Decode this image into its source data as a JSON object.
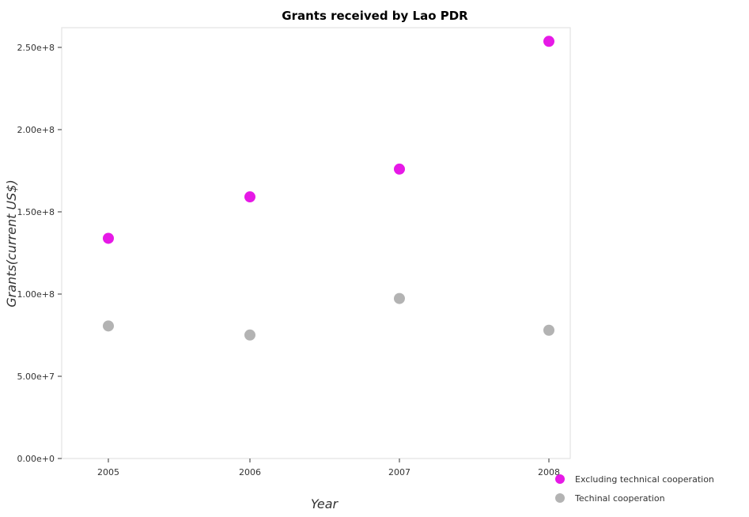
{
  "chart_data": {
    "type": "scatter",
    "title": "Grants received by Lao PDR",
    "xlabel": "Year",
    "ylabel": "Grants(current US$)",
    "categories": [
      "2005",
      "2006",
      "2007",
      "2008"
    ],
    "ylim": [
      0,
      262000000
    ],
    "yticks": [
      0,
      50000000,
      100000000,
      150000000,
      200000000,
      250000000
    ],
    "ytick_labels": [
      "0.00e+0",
      "5.00e+7",
      "1.00e+8",
      "1.50e+8",
      "2.00e+8",
      "2.50e+8"
    ],
    "grid": false,
    "legend_position": "bottom-right",
    "series": [
      {
        "name": "Excluding technical cooperation",
        "color": "#e619e6",
        "values": [
          133900000,
          159100000,
          176000000,
          253700000
        ]
      },
      {
        "name": "Techinal cooperation",
        "color": "#b3b3b3",
        "values": [
          80600000,
          75100000,
          97300000,
          78000000
        ]
      }
    ]
  }
}
